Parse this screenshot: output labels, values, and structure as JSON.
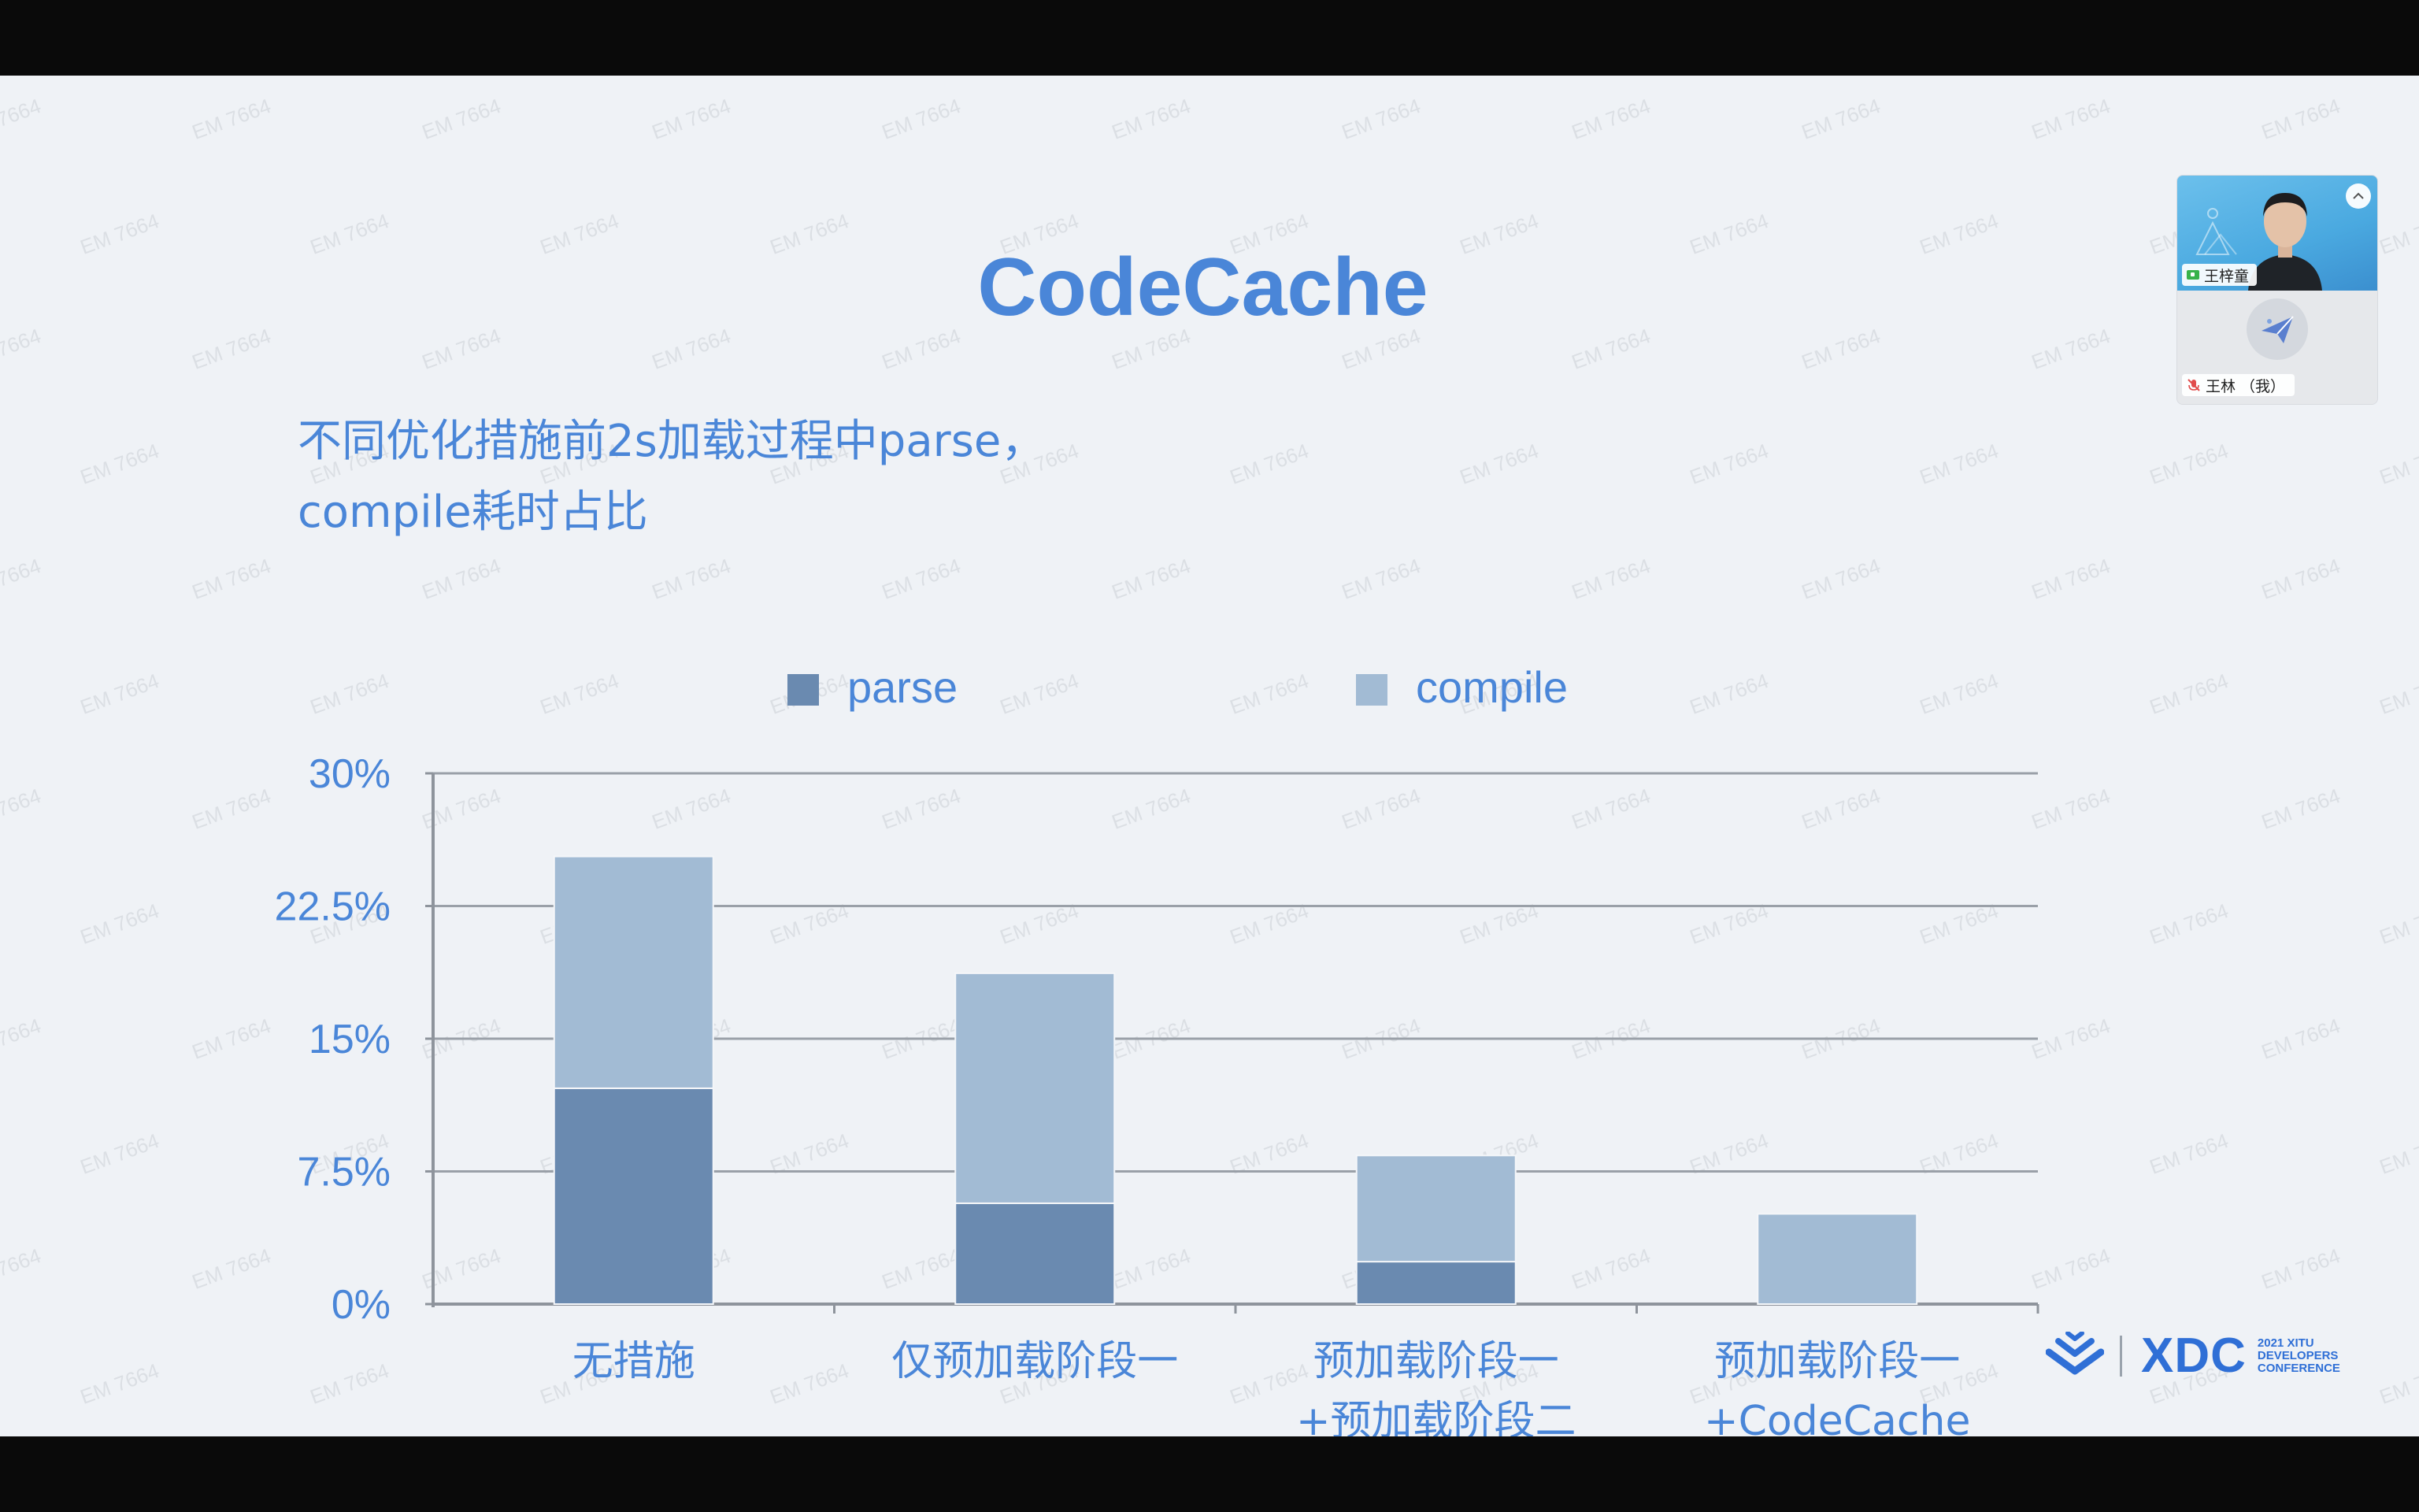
{
  "slide": {
    "title": "CodeCache",
    "subtitle_line1": "不同优化措施前2s加载过程中parse，",
    "subtitle_line2": "compile耗时占比",
    "watermark_text": "EM 7664"
  },
  "chart_data": {
    "type": "bar",
    "stacked": true,
    "categories": [
      [
        "无措施"
      ],
      [
        "仅预加载阶段一"
      ],
      [
        "预加载阶段一",
        "+预加载阶段二"
      ],
      [
        "预加载阶段一",
        "+CodeCache"
      ]
    ],
    "series": [
      {
        "name": "parse",
        "values": [
          12.2,
          5.7,
          2.4,
          0
        ]
      },
      {
        "name": "compile",
        "values": [
          13.1,
          13.0,
          6.0,
          5.1
        ]
      }
    ],
    "yticks": [
      "0%",
      "7.5%",
      "15%",
      "22.5%",
      "30%"
    ],
    "ylim": [
      0,
      30
    ],
    "grid": true,
    "legend_position": "top",
    "colors": {
      "parse": "#6a8ab0",
      "compile": "#a2bbd4",
      "text": "#4a86d8",
      "grid": "#9aa0a8",
      "axis": "#8e949c"
    }
  },
  "meeting": {
    "presenter_name": "王梓童",
    "self_name": "王林 （我）",
    "collapse_icon": "chevron-up-icon",
    "presenter_icon": "screen-share-icon",
    "self_icon": "mic-off-icon"
  },
  "brand": {
    "logo_text": "XDC",
    "logo_sub1": "2021 XITU",
    "logo_sub2": "DEVELOPERS",
    "logo_sub3": "CONFERENCE"
  }
}
